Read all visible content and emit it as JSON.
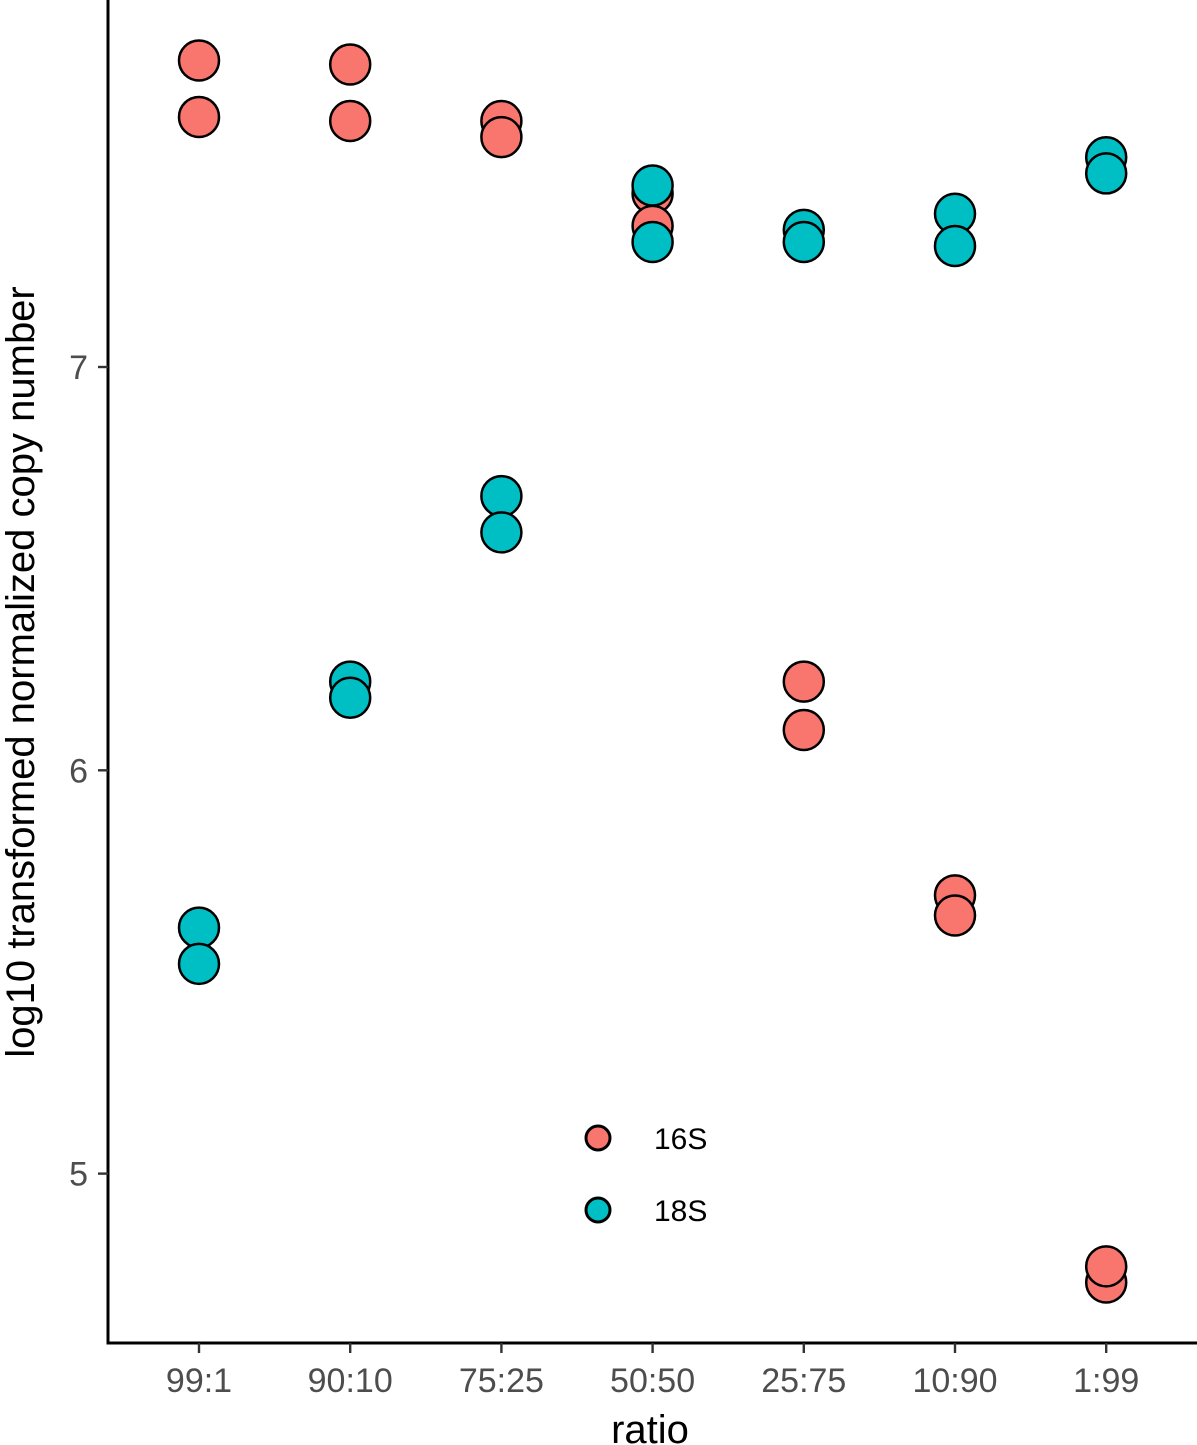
{
  "chart_data": {
    "type": "scatter",
    "title": "",
    "xlabel": "ratio",
    "ylabel": "log10 transformed normalized copy number",
    "categories": [
      "99:1",
      "90:10",
      "75:25",
      "50:50",
      "25:75",
      "10:90",
      "1:99"
    ],
    "y_ticks": [
      5,
      6,
      7
    ],
    "ylim": [
      4.58,
      7.91
    ],
    "grid": false,
    "legend_position": "inside-bottom-center",
    "series": [
      {
        "name": "16S",
        "color": "#F8766D",
        "points": [
          {
            "x": "99:1",
            "y": 7.76
          },
          {
            "x": "99:1",
            "y": 7.62
          },
          {
            "x": "90:10",
            "y": 7.75
          },
          {
            "x": "90:10",
            "y": 7.61
          },
          {
            "x": "75:25",
            "y": 7.61
          },
          {
            "x": "75:25",
            "y": 7.57
          },
          {
            "x": "50:50",
            "y": 7.43
          },
          {
            "x": "50:50",
            "y": 7.35
          },
          {
            "x": "25:75",
            "y": 6.22
          },
          {
            "x": "25:75",
            "y": 6.1
          },
          {
            "x": "10:90",
            "y": 5.69
          },
          {
            "x": "10:90",
            "y": 5.64
          },
          {
            "x": "1:99",
            "y": 4.73
          },
          {
            "x": "1:99",
            "y": 4.77
          }
        ]
      },
      {
        "name": "18S",
        "color": "#00BFC4",
        "points": [
          {
            "x": "99:1",
            "y": 5.61
          },
          {
            "x": "99:1",
            "y": 5.52
          },
          {
            "x": "90:10",
            "y": 6.22
          },
          {
            "x": "90:10",
            "y": 6.18
          },
          {
            "x": "75:25",
            "y": 6.68
          },
          {
            "x": "75:25",
            "y": 6.59
          },
          {
            "x": "50:50",
            "y": 7.45
          },
          {
            "x": "50:50",
            "y": 7.31
          },
          {
            "x": "25:75",
            "y": 7.34
          },
          {
            "x": "25:75",
            "y": 7.31
          },
          {
            "x": "10:90",
            "y": 7.38
          },
          {
            "x": "10:90",
            "y": 7.3
          },
          {
            "x": "1:99",
            "y": 7.52
          },
          {
            "x": "1:99",
            "y": 7.48
          }
        ]
      }
    ],
    "legend": {
      "entries": [
        {
          "label": "16S",
          "color": "#F8766D"
        },
        {
          "label": "18S",
          "color": "#00BFC4"
        }
      ]
    }
  }
}
